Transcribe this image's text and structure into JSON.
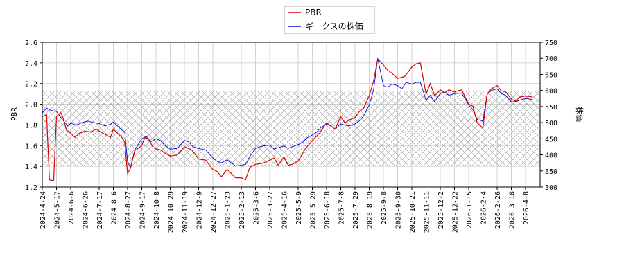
{
  "chart_data": {
    "type": "line",
    "ylabel_left": "PBR",
    "ylabel_right": "株価",
    "ylim_left": [
      1.2,
      2.6
    ],
    "ylim_right": [
      300,
      750
    ],
    "yticks_left": [
      "1.2",
      "1.4",
      "1.6",
      "1.8",
      "2.0",
      "2.2",
      "2.4",
      "2.6"
    ],
    "yticks_right": [
      "300",
      "350",
      "400",
      "450",
      "500",
      "550",
      "600",
      "650",
      "700",
      "750"
    ],
    "x_tick_labels": [
      "2024-4-24",
      "2024-5-17",
      "2024-6-6",
      "2024-6-26",
      "2024-7-17",
      "2024-8-6",
      "2024-8-27",
      "2024-9-17",
      "2024-10-8",
      "2024-10-29",
      "2024-11-19",
      "2024-12-9",
      "2024-12-27",
      "2025-1-23",
      "2025-2-13",
      "2025-3-6",
      "2025-3-27",
      "2025-4-16",
      "2025-5-9",
      "2025-5-29",
      "2025-6-18",
      "2025-7-8",
      "2025-7-29",
      "2025-8-19",
      "2025-9-8",
      "2025-9-30",
      "2025-10-21",
      "2025-11-11",
      "2025-12-2",
      "2025-12-22",
      "2026-1-15",
      "2026-2-4",
      "2026-2-26",
      "2026-3-18",
      "2026-4-8"
    ],
    "band_left": [
      1.4,
      2.13
    ],
    "grid": true,
    "legend_placement": "top-center",
    "series": [
      {
        "name": "PBR",
        "axis": "left",
        "color": "#dd0000",
        "points": [
          [
            0,
            1.88
          ],
          [
            0.3,
            1.9
          ],
          [
            0.5,
            1.27
          ],
          [
            0.8,
            1.26
          ],
          [
            1,
            1.88
          ],
          [
            1.3,
            1.92
          ],
          [
            1.5,
            1.85
          ],
          [
            1.7,
            1.75
          ],
          [
            2,
            1.72
          ],
          [
            2.3,
            1.68
          ],
          [
            2.6,
            1.72
          ],
          [
            3,
            1.74
          ],
          [
            3.4,
            1.73
          ],
          [
            3.8,
            1.76
          ],
          [
            4,
            1.74
          ],
          [
            4.4,
            1.71
          ],
          [
            4.8,
            1.68
          ],
          [
            5,
            1.76
          ],
          [
            5.3,
            1.72
          ],
          [
            5.6,
            1.68
          ],
          [
            5.8,
            1.63
          ],
          [
            6,
            1.33
          ],
          [
            6.2,
            1.38
          ],
          [
            6.5,
            1.55
          ],
          [
            7,
            1.6
          ],
          [
            7.2,
            1.68
          ],
          [
            7.5,
            1.66
          ],
          [
            7.8,
            1.58
          ],
          [
            8,
            1.57
          ],
          [
            8.3,
            1.56
          ],
          [
            8.6,
            1.53
          ],
          [
            9,
            1.5
          ],
          [
            9.5,
            1.51
          ],
          [
            10,
            1.59
          ],
          [
            10.5,
            1.56
          ],
          [
            11,
            1.47
          ],
          [
            11.5,
            1.46
          ],
          [
            12,
            1.37
          ],
          [
            12.3,
            1.35
          ],
          [
            12.6,
            1.3
          ],
          [
            13,
            1.37
          ],
          [
            13.3,
            1.33
          ],
          [
            13.6,
            1.29
          ],
          [
            14,
            1.29
          ],
          [
            14.3,
            1.27
          ],
          [
            14.6,
            1.39
          ],
          [
            15,
            1.42
          ],
          [
            15.5,
            1.43
          ],
          [
            16,
            1.46
          ],
          [
            16.3,
            1.48
          ],
          [
            16.6,
            1.41
          ],
          [
            17,
            1.49
          ],
          [
            17.3,
            1.41
          ],
          [
            17.6,
            1.42
          ],
          [
            18,
            1.45
          ],
          [
            18.5,
            1.57
          ],
          [
            19,
            1.65
          ],
          [
            19.5,
            1.72
          ],
          [
            20,
            1.82
          ],
          [
            20.3,
            1.79
          ],
          [
            20.6,
            1.76
          ],
          [
            21,
            1.88
          ],
          [
            21.3,
            1.82
          ],
          [
            21.6,
            1.85
          ],
          [
            22,
            1.87
          ],
          [
            22.3,
            1.93
          ],
          [
            22.6,
            1.96
          ],
          [
            23,
            2.08
          ],
          [
            23.3,
            2.22
          ],
          [
            23.6,
            2.44
          ],
          [
            24,
            2.38
          ],
          [
            24.3,
            2.33
          ],
          [
            24.6,
            2.3
          ],
          [
            25,
            2.25
          ],
          [
            25.5,
            2.27
          ],
          [
            26,
            2.36
          ],
          [
            26.3,
            2.39
          ],
          [
            26.6,
            2.4
          ],
          [
            27,
            2.1
          ],
          [
            27.3,
            2.2
          ],
          [
            27.6,
            2.08
          ],
          [
            28,
            2.14
          ],
          [
            28.3,
            2.11
          ],
          [
            28.6,
            2.14
          ],
          [
            29,
            2.12
          ],
          [
            29.5,
            2.14
          ],
          [
            30,
            2.0
          ],
          [
            30.3,
            1.98
          ],
          [
            30.6,
            1.82
          ],
          [
            31,
            1.77
          ],
          [
            31.3,
            2.1
          ],
          [
            31.6,
            2.15
          ],
          [
            32,
            2.18
          ],
          [
            32.3,
            2.13
          ],
          [
            32.6,
            2.12
          ],
          [
            33,
            2.05
          ],
          [
            33.3,
            2.03
          ],
          [
            33.6,
            2.07
          ],
          [
            34,
            2.08
          ],
          [
            34.5,
            2.07
          ]
        ]
      },
      {
        "name": "ギークスの株価",
        "axis": "right",
        "color": "#0000dd",
        "points": [
          [
            0,
            530
          ],
          [
            0.3,
            545
          ],
          [
            0.6,
            538
          ],
          [
            1,
            535
          ],
          [
            1.4,
            510
          ],
          [
            1.8,
            490
          ],
          [
            2,
            498
          ],
          [
            2.4,
            492
          ],
          [
            2.8,
            500
          ],
          [
            3.2,
            505
          ],
          [
            3.6,
            500
          ],
          [
            4,
            497
          ],
          [
            4.4,
            490
          ],
          [
            4.8,
            495
          ],
          [
            5,
            502
          ],
          [
            5.4,
            485
          ],
          [
            5.8,
            470
          ],
          [
            6,
            378
          ],
          [
            6.2,
            360
          ],
          [
            6.5,
            415
          ],
          [
            7,
            450
          ],
          [
            7.3,
            458
          ],
          [
            7.6,
            440
          ],
          [
            8,
            450
          ],
          [
            8.3,
            445
          ],
          [
            8.6,
            430
          ],
          [
            9,
            418
          ],
          [
            9.5,
            420
          ],
          [
            10,
            445
          ],
          [
            10.3,
            440
          ],
          [
            10.6,
            425
          ],
          [
            11,
            420
          ],
          [
            11.5,
            415
          ],
          [
            12,
            390
          ],
          [
            12.3,
            380
          ],
          [
            12.6,
            375
          ],
          [
            13,
            385
          ],
          [
            13.3,
            375
          ],
          [
            13.6,
            365
          ],
          [
            14,
            368
          ],
          [
            14.3,
            370
          ],
          [
            14.6,
            395
          ],
          [
            15,
            420
          ],
          [
            15.3,
            425
          ],
          [
            15.6,
            428
          ],
          [
            16,
            430
          ],
          [
            16.3,
            418
          ],
          [
            16.6,
            422
          ],
          [
            17,
            428
          ],
          [
            17.3,
            420
          ],
          [
            17.6,
            425
          ],
          [
            18,
            432
          ],
          [
            18.3,
            438
          ],
          [
            18.6,
            452
          ],
          [
            19,
            462
          ],
          [
            19.3,
            470
          ],
          [
            19.6,
            485
          ],
          [
            20,
            495
          ],
          [
            20.3,
            490
          ],
          [
            20.6,
            480
          ],
          [
            21,
            496
          ],
          [
            21.3,
            492
          ],
          [
            21.6,
            490
          ],
          [
            22,
            496
          ],
          [
            22.3,
            505
          ],
          [
            22.6,
            520
          ],
          [
            23,
            555
          ],
          [
            23.3,
            600
          ],
          [
            23.6,
            700
          ],
          [
            24,
            615
          ],
          [
            24.3,
            610
          ],
          [
            24.6,
            620
          ],
          [
            25,
            615
          ],
          [
            25.3,
            605
          ],
          [
            25.6,
            625
          ],
          [
            26,
            620
          ],
          [
            26.3,
            625
          ],
          [
            26.6,
            625
          ],
          [
            27,
            570
          ],
          [
            27.3,
            585
          ],
          [
            27.6,
            565
          ],
          [
            28,
            590
          ],
          [
            28.3,
            595
          ],
          [
            28.6,
            585
          ],
          [
            29,
            590
          ],
          [
            29.5,
            592
          ],
          [
            30,
            555
          ],
          [
            30.3,
            540
          ],
          [
            30.6,
            510
          ],
          [
            31,
            505
          ],
          [
            31.3,
            590
          ],
          [
            31.6,
            600
          ],
          [
            32,
            605
          ],
          [
            32.3,
            590
          ],
          [
            32.6,
            585
          ],
          [
            33,
            565
          ],
          [
            33.3,
            565
          ],
          [
            33.6,
            570
          ],
          [
            34,
            575
          ],
          [
            34.5,
            572
          ]
        ]
      }
    ]
  }
}
